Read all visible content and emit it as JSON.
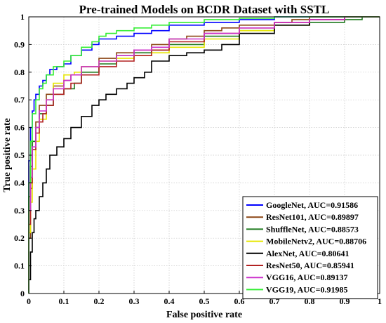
{
  "chart_data": {
    "type": "line",
    "title": "Pre-trained Models on BCDR Dataset with SSTL",
    "xlabel": "False positive rate",
    "ylabel": "True positive rate",
    "xlim": [
      0,
      1
    ],
    "ylim": [
      0,
      1
    ],
    "xticks": [
      "0",
      "0.1",
      "0.2",
      "0.3",
      "0.4",
      "0.5",
      "0.6",
      "0.7",
      "0.8",
      "0.9",
      "1"
    ],
    "yticks": [
      "0",
      "0.1",
      "0.2",
      "0.3",
      "0.4",
      "0.5",
      "0.6",
      "0.7",
      "0.8",
      "0.9",
      "1"
    ],
    "grid": true,
    "legend_position": "bottom-right",
    "series": [
      {
        "name": "GoogleNet, AUC=0.91586",
        "color": "#0000ff",
        "x": [
          0,
          0.005,
          0.01,
          0.015,
          0.02,
          0.03,
          0.04,
          0.05,
          0.06,
          0.08,
          0.1,
          0.12,
          0.15,
          0.18,
          0.2,
          0.25,
          0.3,
          0.35,
          0.4,
          0.5,
          0.6,
          0.7,
          0.8,
          0.9,
          1.0
        ],
        "y": [
          0,
          0.48,
          0.6,
          0.66,
          0.7,
          0.72,
          0.75,
          0.77,
          0.79,
          0.81,
          0.82,
          0.83,
          0.86,
          0.88,
          0.9,
          0.92,
          0.93,
          0.94,
          0.95,
          0.97,
          0.98,
          0.99,
          1.0,
          1.0,
          1.0
        ]
      },
      {
        "name": "ResNet101, AUC=0.89897",
        "color": "#8b4513",
        "x": [
          0,
          0.005,
          0.01,
          0.02,
          0.03,
          0.05,
          0.07,
          0.1,
          0.12,
          0.15,
          0.2,
          0.25,
          0.3,
          0.35,
          0.4,
          0.45,
          0.5,
          0.55,
          0.6,
          0.7,
          0.75,
          0.8,
          0.9,
          1.0
        ],
        "y": [
          0,
          0.2,
          0.38,
          0.55,
          0.62,
          0.68,
          0.72,
          0.75,
          0.77,
          0.79,
          0.82,
          0.85,
          0.87,
          0.88,
          0.9,
          0.92,
          0.93,
          0.95,
          0.96,
          0.97,
          0.98,
          0.99,
          1.0,
          1.0
        ]
      },
      {
        "name": "ShuffleNet, AUC=0.88573",
        "color": "#1e7a1e",
        "x": [
          0,
          0.005,
          0.01,
          0.02,
          0.03,
          0.05,
          0.07,
          0.1,
          0.13,
          0.15,
          0.2,
          0.25,
          0.3,
          0.35,
          0.4,
          0.5,
          0.6,
          0.7,
          0.8,
          0.9,
          0.95,
          1.0
        ],
        "y": [
          0,
          0.35,
          0.46,
          0.55,
          0.6,
          0.65,
          0.68,
          0.72,
          0.74,
          0.76,
          0.8,
          0.83,
          0.86,
          0.87,
          0.88,
          0.9,
          0.93,
          0.95,
          0.97,
          0.98,
          0.99,
          1.0
        ]
      },
      {
        "name": "MobileNetv2, AUC=0.88706",
        "color": "#e6e600",
        "x": [
          0,
          0.005,
          0.01,
          0.02,
          0.03,
          0.05,
          0.07,
          0.1,
          0.13,
          0.15,
          0.2,
          0.25,
          0.3,
          0.35,
          0.4,
          0.5,
          0.6,
          0.7,
          0.8,
          0.9,
          1.0
        ],
        "y": [
          0,
          0.22,
          0.33,
          0.45,
          0.55,
          0.63,
          0.7,
          0.76,
          0.79,
          0.8,
          0.82,
          0.84,
          0.85,
          0.86,
          0.87,
          0.89,
          0.92,
          0.95,
          0.97,
          0.99,
          1.0
        ]
      },
      {
        "name": "AlexNet, AUC=0.80641",
        "color": "#000000",
        "x": [
          0,
          0.005,
          0.01,
          0.015,
          0.02,
          0.03,
          0.04,
          0.05,
          0.06,
          0.08,
          0.1,
          0.12,
          0.15,
          0.18,
          0.2,
          0.22,
          0.25,
          0.28,
          0.3,
          0.33,
          0.35,
          0.4,
          0.45,
          0.5,
          0.55,
          0.6,
          0.7,
          0.8,
          0.9,
          1.0
        ],
        "y": [
          0,
          0.05,
          0.15,
          0.22,
          0.27,
          0.3,
          0.35,
          0.4,
          0.45,
          0.5,
          0.53,
          0.56,
          0.6,
          0.64,
          0.68,
          0.7,
          0.72,
          0.74,
          0.76,
          0.78,
          0.8,
          0.84,
          0.86,
          0.87,
          0.88,
          0.9,
          0.94,
          0.97,
          0.99,
          1.0
        ]
      },
      {
        "name": "ResNet50, AUC=0.85941",
        "color": "#b22222",
        "x": [
          0,
          0.005,
          0.01,
          0.02,
          0.03,
          0.04,
          0.05,
          0.07,
          0.1,
          0.12,
          0.15,
          0.2,
          0.25,
          0.3,
          0.35,
          0.4,
          0.5,
          0.6,
          0.7,
          0.8,
          0.9,
          1.0
        ],
        "y": [
          0,
          0.25,
          0.4,
          0.52,
          0.58,
          0.62,
          0.65,
          0.68,
          0.72,
          0.74,
          0.76,
          0.79,
          0.82,
          0.84,
          0.86,
          0.88,
          0.91,
          0.94,
          0.96,
          0.98,
          0.99,
          1.0
        ]
      },
      {
        "name": "VGG16, AUC=0.89137",
        "color": "#cc33cc",
        "x": [
          0,
          0.005,
          0.01,
          0.02,
          0.03,
          0.05,
          0.07,
          0.1,
          0.12,
          0.15,
          0.2,
          0.25,
          0.3,
          0.35,
          0.4,
          0.5,
          0.6,
          0.7,
          0.8,
          0.9,
          1.0
        ],
        "y": [
          0,
          0.3,
          0.42,
          0.53,
          0.6,
          0.66,
          0.7,
          0.74,
          0.77,
          0.79,
          0.82,
          0.84,
          0.86,
          0.88,
          0.89,
          0.92,
          0.94,
          0.96,
          0.98,
          0.99,
          1.0
        ]
      },
      {
        "name": "VGG19, AUC=0.91985",
        "color": "#33ee33",
        "x": [
          0,
          0.005,
          0.01,
          0.02,
          0.03,
          0.04,
          0.05,
          0.07,
          0.1,
          0.12,
          0.15,
          0.18,
          0.2,
          0.22,
          0.25,
          0.3,
          0.35,
          0.4,
          0.5,
          0.6,
          0.7,
          0.8,
          0.9,
          1.0
        ],
        "y": [
          0,
          0.4,
          0.55,
          0.65,
          0.7,
          0.74,
          0.76,
          0.79,
          0.82,
          0.84,
          0.86,
          0.89,
          0.91,
          0.93,
          0.94,
          0.95,
          0.96,
          0.97,
          0.98,
          0.99,
          0.995,
          1.0,
          1.0,
          1.0
        ]
      }
    ]
  }
}
